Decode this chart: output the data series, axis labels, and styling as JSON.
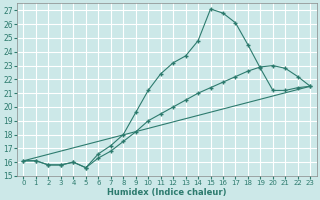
{
  "xlabel": "Humidex (Indice chaleur)",
  "bg_color": "#cce8e8",
  "grid_color": "#ffffff",
  "line_color": "#2d7b6e",
  "xlim": [
    -0.5,
    23.5
  ],
  "ylim": [
    15,
    27.5
  ],
  "xticks": [
    0,
    1,
    2,
    3,
    4,
    5,
    6,
    7,
    8,
    9,
    10,
    11,
    12,
    13,
    14,
    15,
    16,
    17,
    18,
    19,
    20,
    21,
    22,
    23
  ],
  "yticks": [
    15,
    16,
    17,
    18,
    19,
    20,
    21,
    22,
    23,
    24,
    25,
    26,
    27
  ],
  "line1_x": [
    0,
    1,
    2,
    3,
    4,
    5,
    6,
    7,
    8,
    9,
    10,
    11,
    12,
    13,
    14,
    15,
    16,
    17,
    18,
    19,
    20,
    21,
    22,
    23
  ],
  "line1_y": [
    16.1,
    16.1,
    15.8,
    15.8,
    16.0,
    15.6,
    16.6,
    17.2,
    18.0,
    19.6,
    21.2,
    22.4,
    23.2,
    23.7,
    24.8,
    27.1,
    26.8,
    26.1,
    24.5,
    22.8,
    21.2,
    21.2,
    21.4,
    21.5
  ],
  "line2_x": [
    0,
    1,
    2,
    3,
    4,
    5,
    6,
    7,
    8,
    9,
    10,
    11,
    12,
    13,
    14,
    15,
    16,
    17,
    18,
    19,
    20,
    21,
    22,
    23
  ],
  "line2_y": [
    16.1,
    16.1,
    15.8,
    15.8,
    16.0,
    15.6,
    16.3,
    16.8,
    17.5,
    18.2,
    19.0,
    19.5,
    20.0,
    20.5,
    21.0,
    21.4,
    21.8,
    22.2,
    22.6,
    22.9,
    23.0,
    22.8,
    22.2,
    21.5
  ],
  "line3_x": [
    0,
    23
  ],
  "line3_y": [
    16.1,
    21.5
  ]
}
